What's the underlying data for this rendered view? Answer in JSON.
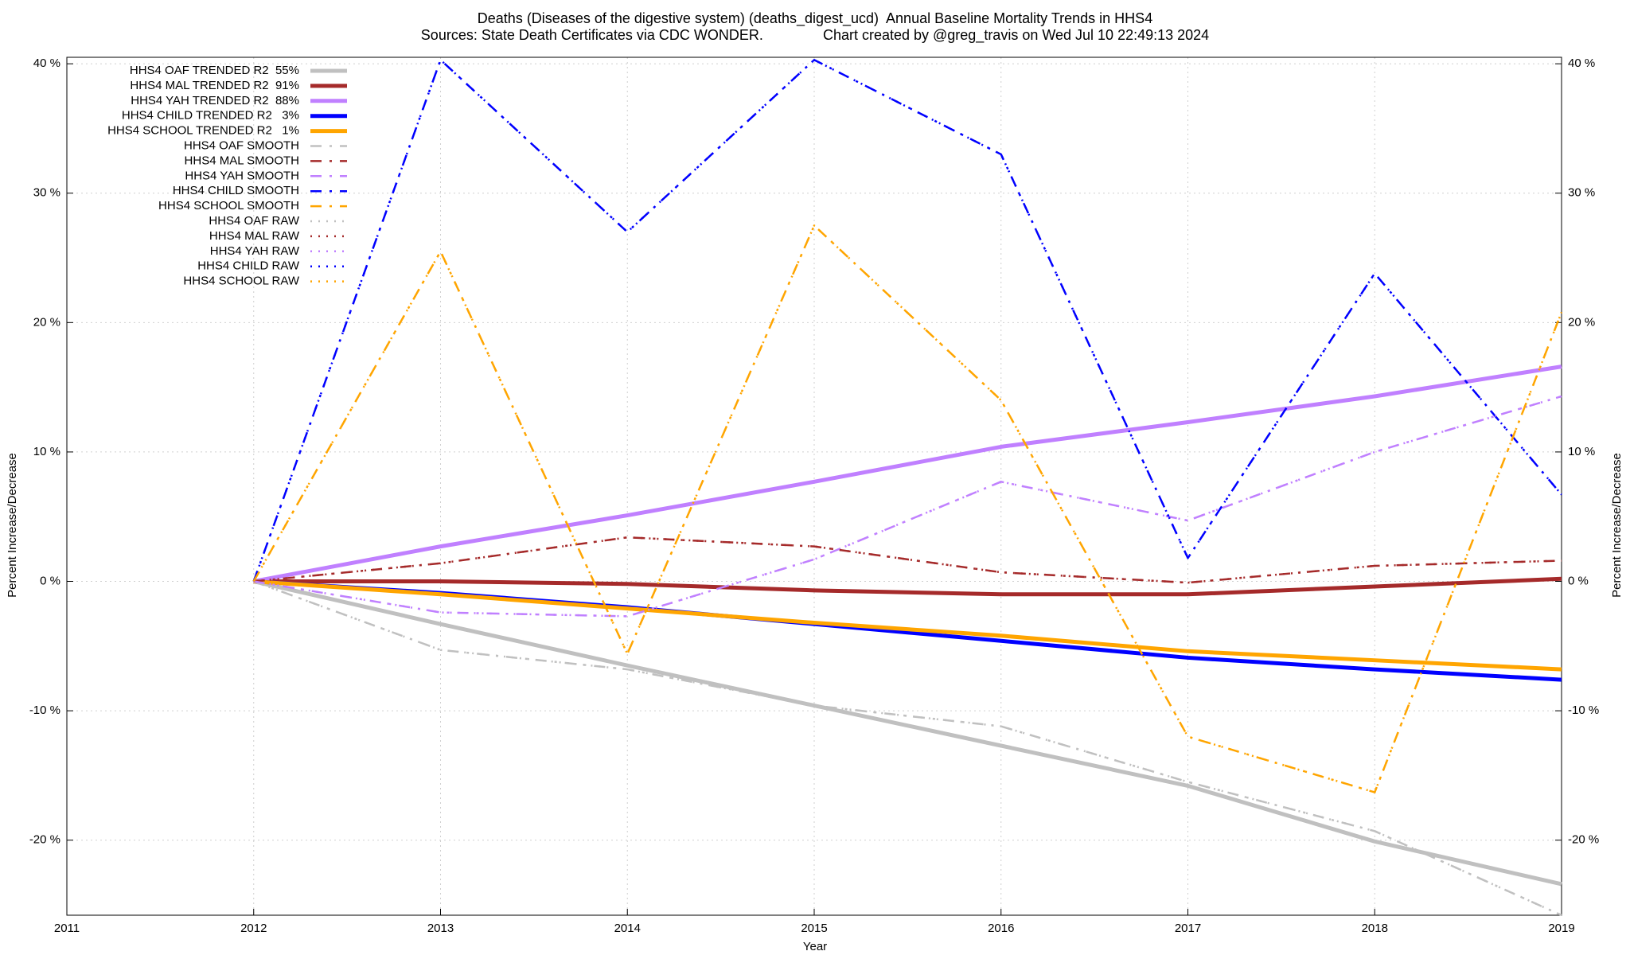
{
  "chart_data": {
    "type": "line",
    "title": "Deaths (Diseases of the digestive system) (deaths_digest_ucd)  Annual Baseline Mortality Trends in HHS4",
    "subtitle": "Sources: State Death Certificates via CDC WONDER.               Chart created by @greg_travis on Wed Jul 10 22:49:13 2024",
    "xlabel": "Year",
    "ylabel": "Percent Increase/Decrease",
    "x": [
      2012,
      2013,
      2014,
      2015,
      2016,
      2017,
      2018,
      2019
    ],
    "xlim": [
      2011,
      2019
    ],
    "xticks": [
      2011,
      2012,
      2013,
      2014,
      2015,
      2016,
      2017,
      2018,
      2019
    ],
    "ylim": [
      -25.8,
      40.5
    ],
    "yticks": [
      {
        "value": -20,
        "label": "-20 %"
      },
      {
        "value": -10,
        "label": "-10 %"
      },
      {
        "value": 0,
        "label": "0 %"
      },
      {
        "value": 10,
        "label": "10 %"
      },
      {
        "value": 20,
        "label": "20 %"
      },
      {
        "value": 30,
        "label": "30 %"
      },
      {
        "value": 40,
        "label": "40 %"
      }
    ],
    "grid": true,
    "legend": "top-left",
    "series": [
      {
        "name": "HHS4 OAF TRENDED R2  55%",
        "color": "#c0c0c0",
        "style": "solid",
        "values": [
          0,
          -3.3,
          -6.5,
          -9.6,
          -12.7,
          -15.8,
          -20.1,
          -23.4
        ]
      },
      {
        "name": "HHS4 MAL TRENDED R2  91%",
        "color": "#a52a2a",
        "style": "solid",
        "values": [
          0,
          0,
          -0.2,
          -0.7,
          -1.0,
          -1.0,
          -0.4,
          0.2
        ]
      },
      {
        "name": "HHS4 YAH TRENDED R2  88%",
        "color": "#c080ff",
        "style": "solid",
        "values": [
          0,
          2.7,
          5.1,
          7.7,
          10.4,
          12.3,
          14.3,
          16.6
        ]
      },
      {
        "name": "HHS4 CHILD TRENDED R2   3%",
        "color": "#0000ff",
        "style": "solid",
        "values": [
          0,
          -0.9,
          -2.0,
          -3.3,
          -4.6,
          -5.9,
          -6.8,
          -7.6
        ]
      },
      {
        "name": "HHS4 SCHOOL TRENDED R2   1%",
        "color": "#ffa500",
        "style": "solid",
        "values": [
          0,
          -1.0,
          -2.1,
          -3.2,
          -4.2,
          -5.4,
          -6.1,
          -6.8
        ]
      },
      {
        "name": "HHS4 OAF SMOOTH",
        "color": "#c0c0c0",
        "style": "dashed",
        "values": [
          0,
          -5.3,
          -6.8,
          -9.6,
          -11.2,
          -15.5,
          -19.3,
          -25.8
        ]
      },
      {
        "name": "HHS4 MAL SMOOTH",
        "color": "#a52a2a",
        "style": "dashed",
        "values": [
          0,
          1.4,
          3.4,
          2.7,
          0.7,
          -0.1,
          1.2,
          1.6
        ]
      },
      {
        "name": "HHS4 YAH SMOOTH",
        "color": "#c080ff",
        "style": "dashed",
        "values": [
          0,
          -2.4,
          -2.7,
          1.7,
          7.7,
          4.7,
          10.0,
          14.3
        ]
      },
      {
        "name": "HHS4 CHILD SMOOTH",
        "color": "#0000ff",
        "style": "dashed",
        "values": [
          0,
          40.3,
          27.0,
          40.3,
          33.0,
          1.8,
          23.8,
          6.7
        ]
      },
      {
        "name": "HHS4 SCHOOL SMOOTH",
        "color": "#ffa500",
        "style": "dashed",
        "values": [
          0,
          25.5,
          -5.6,
          27.5,
          14.0,
          -12.0,
          -16.3,
          20.8
        ]
      },
      {
        "name": "HHS4 OAF RAW",
        "color": "#c0c0c0",
        "style": "dotted",
        "values": [
          0,
          -5.3,
          -6.8,
          -9.6,
          -11.2,
          -15.5,
          -19.3,
          -25.8
        ]
      },
      {
        "name": "HHS4 MAL RAW",
        "color": "#a52a2a",
        "style": "dotted",
        "values": [
          0,
          1.4,
          3.4,
          2.7,
          0.7,
          -0.1,
          1.2,
          1.6
        ]
      },
      {
        "name": "HHS4 YAH RAW",
        "color": "#c080ff",
        "style": "dotted",
        "values": [
          0,
          -2.4,
          -2.7,
          1.7,
          7.7,
          4.7,
          10.0,
          14.3
        ]
      },
      {
        "name": "HHS4 CHILD RAW",
        "color": "#0000ff",
        "style": "dotted",
        "values": [
          0,
          40.3,
          27.0,
          40.3,
          33.0,
          1.8,
          23.8,
          6.7
        ]
      },
      {
        "name": "HHS4 SCHOOL RAW",
        "color": "#ffa500",
        "style": "dotted",
        "values": [
          0,
          25.5,
          -5.6,
          27.5,
          14.0,
          -12.0,
          -16.3,
          20.8
        ]
      }
    ]
  }
}
